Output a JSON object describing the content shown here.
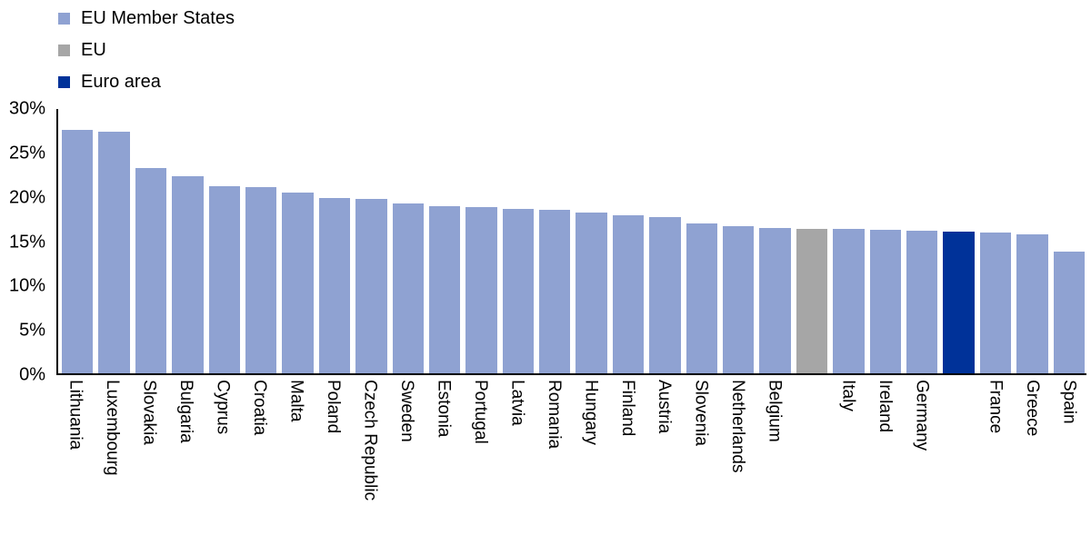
{
  "chart_data": {
    "type": "bar",
    "title": "",
    "xlabel": "",
    "ylabel": "",
    "ylim": [
      0,
      30
    ],
    "ytick_step": 5,
    "ytick_suffix": "%",
    "grid": false,
    "legend_position": "top-left",
    "colors": {
      "member": "#8FA2D2",
      "eu": "#A6A6A6",
      "euro": "#003299"
    },
    "legend": [
      {
        "label": "EU Member States",
        "group": "member"
      },
      {
        "label": "EU",
        "group": "eu"
      },
      {
        "label": "Euro area",
        "group": "euro"
      }
    ],
    "points": [
      {
        "label": "Lithuania",
        "value": 27.6,
        "group": "member"
      },
      {
        "label": "Luxembourg",
        "value": 27.4,
        "group": "member"
      },
      {
        "label": "Slovakia",
        "value": 23.3,
        "group": "member"
      },
      {
        "label": "Bulgaria",
        "value": 22.4,
        "group": "member"
      },
      {
        "label": "Cyprus",
        "value": 21.2,
        "group": "member"
      },
      {
        "label": "Croatia",
        "value": 21.1,
        "group": "member"
      },
      {
        "label": "Malta",
        "value": 20.5,
        "group": "member"
      },
      {
        "label": "Poland",
        "value": 19.9,
        "group": "member"
      },
      {
        "label": "Czech Republic",
        "value": 19.8,
        "group": "member"
      },
      {
        "label": "Sweden",
        "value": 19.3,
        "group": "member"
      },
      {
        "label": "Estonia",
        "value": 19.0,
        "group": "member"
      },
      {
        "label": "Portugal",
        "value": 18.9,
        "group": "member"
      },
      {
        "label": "Latvia",
        "value": 18.7,
        "group": "member"
      },
      {
        "label": "Romania",
        "value": 18.6,
        "group": "member"
      },
      {
        "label": "Hungary",
        "value": 18.2,
        "group": "member"
      },
      {
        "label": "Finland",
        "value": 17.9,
        "group": "member"
      },
      {
        "label": "Austria",
        "value": 17.7,
        "group": "member"
      },
      {
        "label": "Slovenia",
        "value": 17.0,
        "group": "member"
      },
      {
        "label": "Netherlands",
        "value": 16.7,
        "group": "member"
      },
      {
        "label": "Belgium",
        "value": 16.5,
        "group": "member"
      },
      {
        "label": "",
        "value": 16.4,
        "group": "eu"
      },
      {
        "label": "Italy",
        "value": 16.4,
        "group": "member"
      },
      {
        "label": "Ireland",
        "value": 16.3,
        "group": "member"
      },
      {
        "label": "Germany",
        "value": 16.2,
        "group": "member"
      },
      {
        "label": "",
        "value": 16.1,
        "group": "euro"
      },
      {
        "label": "France",
        "value": 16.0,
        "group": "member"
      },
      {
        "label": "Greece",
        "value": 15.8,
        "group": "member"
      },
      {
        "label": "Spain",
        "value": 13.8,
        "group": "member"
      }
    ]
  }
}
